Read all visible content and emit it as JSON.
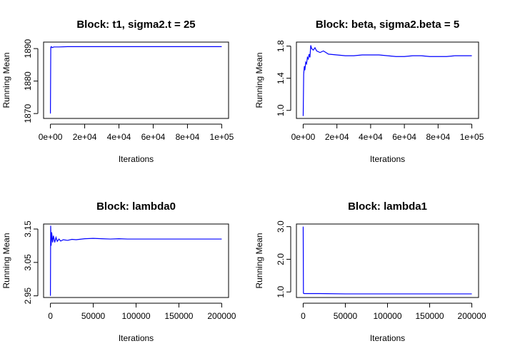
{
  "figure": {
    "background": "#ffffff",
    "line_color": "#0000ff",
    "axis_color": "#000000"
  },
  "chart_data": [
    {
      "type": "line",
      "title": "Block: t1, sigma2.t = 25",
      "xlabel": "Iterations",
      "ylabel": "Running Mean",
      "xlim": [
        -4000,
        104000
      ],
      "ylim": [
        1868.5,
        1892
      ],
      "xticks": [
        0,
        20000,
        40000,
        60000,
        80000,
        100000
      ],
      "xtick_labels": [
        "0e+00",
        "2e+04",
        "4e+04",
        "6e+04",
        "8e+04",
        "1e+05"
      ],
      "yticks": [
        1870,
        1880,
        1890
      ],
      "ytick_labels": [
        "1870",
        "1880",
        "1890"
      ],
      "series": [
        {
          "x": [
            1,
            200,
            500,
            1000,
            2000,
            5000,
            10000,
            20000,
            40000,
            60000,
            80000,
            100000
          ],
          "y": [
            1870,
            1890.4,
            1890.6,
            1890.3,
            1890.5,
            1890.5,
            1890.6,
            1890.6,
            1890.6,
            1890.6,
            1890.6,
            1890.6
          ]
        }
      ]
    },
    {
      "type": "line",
      "title": "Block: beta, sigma2.beta = 5",
      "xlabel": "Iterations",
      "ylabel": "Running Mean",
      "xlim": [
        -4000,
        104000
      ],
      "ylim": [
        0.9,
        1.85
      ],
      "xticks": [
        0,
        20000,
        40000,
        60000,
        80000,
        100000
      ],
      "xtick_labels": [
        "0e+00",
        "2e+04",
        "4e+04",
        "6e+04",
        "8e+04",
        "1e+05"
      ],
      "yticks": [
        1.0,
        1.4,
        1.8
      ],
      "ytick_labels": [
        "1.0",
        "1.4",
        "1.8"
      ],
      "series": [
        {
          "x": [
            1,
            300,
            700,
            1000,
            1500,
            2000,
            2500,
            3000,
            3500,
            4000,
            4500,
            5000,
            6000,
            7000,
            8000,
            10000,
            12000,
            15000,
            20000,
            25000,
            30000,
            35000,
            40000,
            45000,
            50000,
            55000,
            60000,
            65000,
            70000,
            75000,
            80000,
            85000,
            90000,
            95000,
            100000
          ],
          "y": [
            0.93,
            1.45,
            1.55,
            1.5,
            1.6,
            1.58,
            1.66,
            1.64,
            1.7,
            1.66,
            1.81,
            1.77,
            1.75,
            1.78,
            1.74,
            1.72,
            1.74,
            1.7,
            1.69,
            1.68,
            1.68,
            1.69,
            1.69,
            1.69,
            1.68,
            1.67,
            1.67,
            1.68,
            1.68,
            1.67,
            1.67,
            1.67,
            1.68,
            1.68,
            1.68
          ]
        }
      ]
    },
    {
      "type": "line",
      "title": "Block: lambda0",
      "xlabel": "Iterations",
      "ylabel": "Running Mean",
      "xlim": [
        -8000,
        208000
      ],
      "ylim": [
        2.945,
        3.165
      ],
      "xticks": [
        0,
        50000,
        100000,
        150000,
        200000
      ],
      "xtick_labels": [
        "0",
        "50000",
        "100000",
        "150000",
        "200000"
      ],
      "yticks": [
        2.95,
        3.05,
        3.15
      ],
      "ytick_labels": [
        "2.95",
        "3.05",
        "3.15"
      ],
      "series": [
        {
          "x": [
            1,
            300,
            800,
            1500,
            2500,
            3500,
            5000,
            6500,
            8000,
            10000,
            12000,
            15000,
            20000,
            25000,
            30000,
            40000,
            50000,
            60000,
            70000,
            80000,
            90000,
            100000,
            120000,
            140000,
            160000,
            180000,
            200000
          ],
          "y": [
            2.95,
            3.16,
            3.1,
            3.14,
            3.11,
            3.13,
            3.11,
            3.125,
            3.113,
            3.12,
            3.114,
            3.118,
            3.116,
            3.119,
            3.118,
            3.121,
            3.122,
            3.121,
            3.12,
            3.121,
            3.12,
            3.12,
            3.12,
            3.12,
            3.12,
            3.12,
            3.12
          ]
        }
      ]
    },
    {
      "type": "line",
      "title": "Block: lambda1",
      "xlabel": "Iterations",
      "ylabel": "Running Mean",
      "xlim": [
        -8000,
        208000
      ],
      "ylim": [
        0.83,
        3.08
      ],
      "xticks": [
        0,
        50000,
        100000,
        150000,
        200000
      ],
      "xtick_labels": [
        "0",
        "50000",
        "100000",
        "150000",
        "200000"
      ],
      "yticks": [
        1.0,
        2.0,
        3.0
      ],
      "ytick_labels": [
        "1.0",
        "2.0",
        "3.0"
      ],
      "series": [
        {
          "x": [
            1,
            300,
            1000,
            5000,
            20000,
            50000,
            100000,
            150000,
            200000
          ],
          "y": [
            3.0,
            0.96,
            0.95,
            0.95,
            0.95,
            0.94,
            0.94,
            0.94,
            0.94
          ]
        }
      ]
    }
  ]
}
